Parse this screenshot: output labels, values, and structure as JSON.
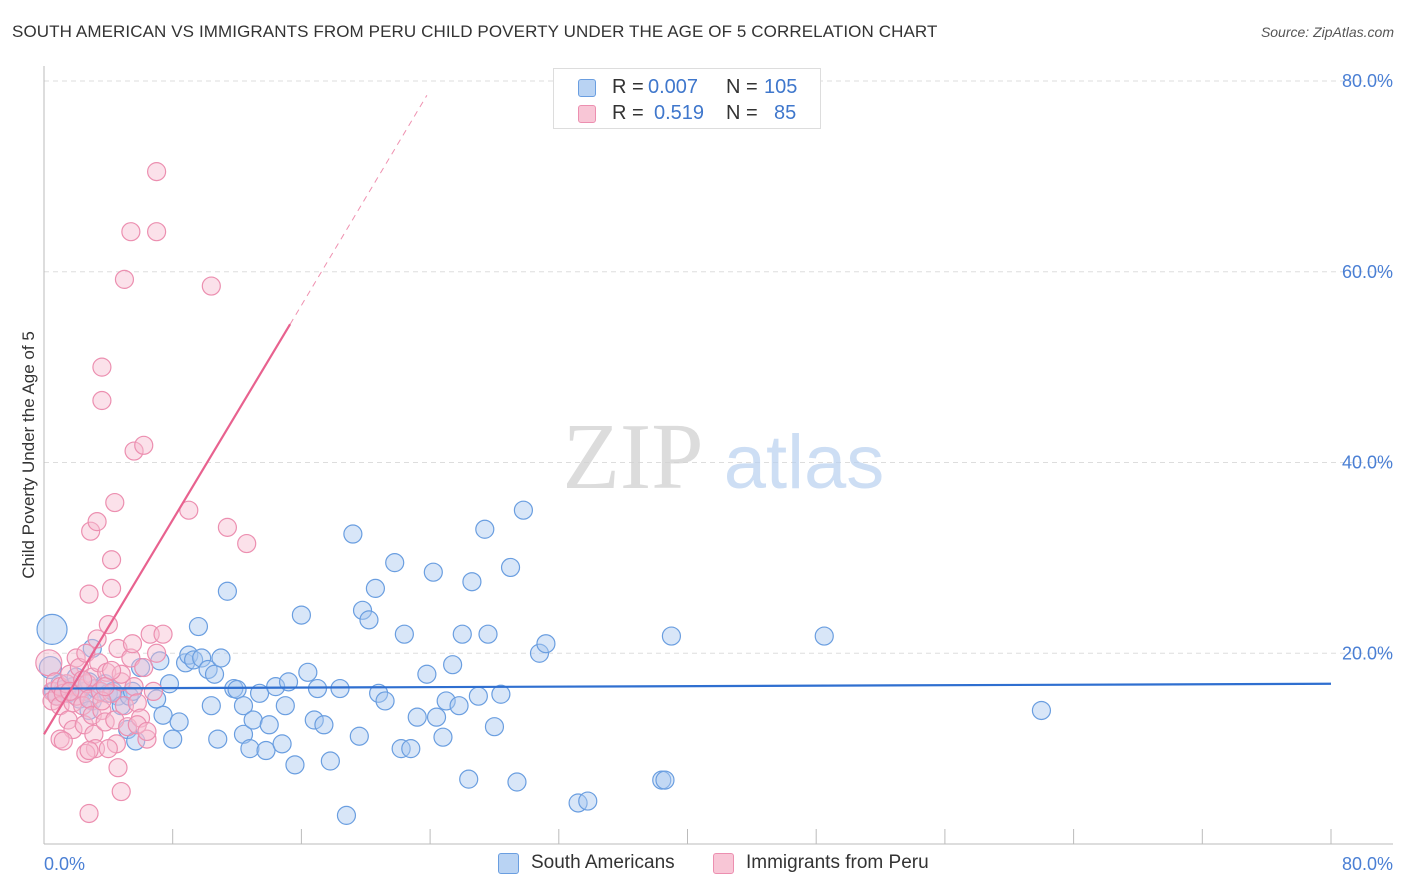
{
  "title": "SOUTH AMERICAN VS IMMIGRANTS FROM PERU CHILD POVERTY UNDER THE AGE OF 5 CORRELATION CHART",
  "source": "Source: ZipAtlas.com",
  "watermark": {
    "zip": "ZIP",
    "atlas": "atlas"
  },
  "colors": {
    "blue_fill": "#a9c8f0",
    "blue_stroke": "#6a9ee0",
    "blue_line": "#2f6fd0",
    "pink_fill": "#f6bdd0",
    "pink_stroke": "#ec8fb0",
    "pink_line": "#e8628f",
    "tick_text": "#4a7fd4",
    "grid": "#dddddd"
  },
  "legend": {
    "rows": [
      {
        "r_label": "R =",
        "r_value": "0.007",
        "n_label": "N =",
        "n_value": "105"
      },
      {
        "r_label": "R =",
        "r_value": "0.519",
        "n_label": "N =",
        "n_value": "85"
      }
    ]
  },
  "bottom_legend": {
    "series1": "South Americans",
    "series2": "Immigrants from Peru"
  },
  "chart_data": {
    "type": "scatter",
    "title": "SOUTH AMERICAN VS IMMIGRANTS FROM PERU CHILD POVERTY UNDER THE AGE OF 5 CORRELATION CHART",
    "xlabel": "",
    "ylabel": "Child Poverty Under the Age of 5",
    "xlim": [
      0,
      80
    ],
    "ylim": [
      0,
      80
    ],
    "x_tick_labels": [
      "0.0%",
      "80.0%"
    ],
    "y_tick_labels": [
      "20.0%",
      "40.0%",
      "60.0%",
      "80.0%"
    ],
    "y_ticks": [
      20,
      40,
      60,
      80
    ],
    "legend_position": "top-center",
    "series": [
      {
        "name": "South Americans",
        "R": 0.007,
        "N": 105,
        "trend": {
          "x1": 0,
          "y1": 16.3,
          "x2": 80,
          "y2": 16.8
        },
        "points": [
          [
            0.5,
            22.5
          ],
          [
            0.4,
            18.5
          ],
          [
            0.6,
            16.0
          ],
          [
            0.8,
            15.5
          ],
          [
            1.0,
            16.8
          ],
          [
            1.2,
            16.2
          ],
          [
            1.5,
            15.8
          ],
          [
            1.8,
            16.5
          ],
          [
            2.0,
            17.5
          ],
          [
            2.2,
            15.2
          ],
          [
            2.5,
            16.0
          ],
          [
            2.8,
            17.0
          ],
          [
            3.0,
            15.0
          ],
          [
            3.2,
            16.3
          ],
          [
            3.5,
            16.0
          ],
          [
            3.8,
            16.8
          ],
          [
            4.0,
            15.8
          ],
          [
            4.3,
            16.0
          ],
          [
            4.6,
            15.5
          ],
          [
            2.8,
            14.0
          ],
          [
            3.0,
            20.5
          ],
          [
            4.8,
            14.5
          ],
          [
            5.3,
            15.5
          ],
          [
            5.5,
            16.0
          ],
          [
            5.2,
            12.0
          ],
          [
            5.7,
            10.8
          ],
          [
            6.0,
            18.5
          ],
          [
            7.0,
            15.2
          ],
          [
            7.2,
            19.2
          ],
          [
            7.4,
            13.5
          ],
          [
            7.8,
            16.8
          ],
          [
            8.0,
            11.0
          ],
          [
            8.4,
            12.8
          ],
          [
            8.8,
            19.0
          ],
          [
            9.0,
            19.8
          ],
          [
            9.3,
            19.3
          ],
          [
            9.6,
            22.8
          ],
          [
            9.8,
            19.5
          ],
          [
            10.2,
            18.3
          ],
          [
            10.4,
            14.5
          ],
          [
            10.6,
            17.8
          ],
          [
            10.8,
            11.0
          ],
          [
            11.0,
            19.5
          ],
          [
            11.4,
            26.5
          ],
          [
            11.8,
            16.3
          ],
          [
            12.0,
            16.2
          ],
          [
            12.4,
            14.5
          ],
          [
            12.4,
            11.5
          ],
          [
            12.8,
            10.0
          ],
          [
            13.0,
            13.0
          ],
          [
            13.4,
            15.8
          ],
          [
            13.8,
            9.8
          ],
          [
            14.0,
            12.5
          ],
          [
            14.4,
            16.5
          ],
          [
            14.8,
            10.5
          ],
          [
            15.0,
            14.5
          ],
          [
            15.2,
            17.0
          ],
          [
            15.6,
            8.3
          ],
          [
            16.0,
            24.0
          ],
          [
            16.4,
            18.0
          ],
          [
            16.8,
            13.0
          ],
          [
            17.0,
            16.3
          ],
          [
            17.4,
            12.5
          ],
          [
            17.8,
            8.7
          ],
          [
            18.4,
            16.3
          ],
          [
            18.8,
            3.0
          ],
          [
            19.2,
            32.5
          ],
          [
            19.6,
            11.3
          ],
          [
            19.8,
            24.5
          ],
          [
            20.2,
            23.5
          ],
          [
            20.6,
            26.8
          ],
          [
            20.8,
            15.8
          ],
          [
            21.2,
            15.0
          ],
          [
            21.8,
            29.5
          ],
          [
            22.2,
            10.0
          ],
          [
            22.4,
            22.0
          ],
          [
            22.8,
            10.0
          ],
          [
            23.2,
            13.3
          ],
          [
            23.8,
            17.8
          ],
          [
            24.2,
            28.5
          ],
          [
            24.4,
            13.3
          ],
          [
            24.8,
            11.2
          ],
          [
            25.0,
            15.0
          ],
          [
            25.4,
            18.8
          ],
          [
            25.8,
            14.5
          ],
          [
            26.0,
            22.0
          ],
          [
            26.4,
            6.8
          ],
          [
            26.6,
            27.5
          ],
          [
            27.0,
            15.5
          ],
          [
            27.4,
            33.0
          ],
          [
            27.6,
            22.0
          ],
          [
            28.0,
            12.3
          ],
          [
            28.4,
            15.7
          ],
          [
            29.0,
            29.0
          ],
          [
            29.4,
            6.5
          ],
          [
            29.8,
            35.0
          ],
          [
            30.8,
            20.0
          ],
          [
            31.2,
            21.0
          ],
          [
            33.2,
            4.3
          ],
          [
            33.8,
            4.5
          ],
          [
            38.4,
            6.7
          ],
          [
            38.6,
            6.7
          ],
          [
            39.0,
            21.8
          ],
          [
            48.5,
            21.8
          ],
          [
            62.0,
            14.0
          ]
        ]
      },
      {
        "name": "Immigrants from Peru",
        "R": 0.519,
        "N": 85,
        "trend": {
          "x1": 0,
          "y1": 11.5,
          "x2": 15.3,
          "y2": 54.5,
          "dashed_to_x": 23.8,
          "dashed_to_y": 78.5
        },
        "points": [
          [
            0.3,
            19.0
          ],
          [
            0.5,
            16.0
          ],
          [
            0.5,
            15.0
          ],
          [
            0.7,
            17.0
          ],
          [
            0.8,
            15.5
          ],
          [
            1.0,
            16.5
          ],
          [
            1.0,
            14.5
          ],
          [
            1.2,
            15.8
          ],
          [
            1.4,
            16.8
          ],
          [
            1.5,
            13.0
          ],
          [
            1.6,
            17.8
          ],
          [
            1.8,
            14.8
          ],
          [
            1.8,
            12.0
          ],
          [
            2.0,
            19.5
          ],
          [
            2.0,
            15.5
          ],
          [
            2.2,
            18.5
          ],
          [
            2.3,
            16.3
          ],
          [
            2.4,
            14.5
          ],
          [
            2.5,
            12.5
          ],
          [
            2.6,
            20.0
          ],
          [
            2.7,
            16.8
          ],
          [
            2.8,
            15.2
          ],
          [
            3.0,
            17.5
          ],
          [
            3.0,
            13.5
          ],
          [
            3.1,
            11.5
          ],
          [
            3.2,
            10.0
          ],
          [
            3.3,
            21.5
          ],
          [
            3.4,
            19.0
          ],
          [
            3.5,
            16.0
          ],
          [
            3.6,
            14.0
          ],
          [
            3.8,
            12.8
          ],
          [
            3.9,
            18.0
          ],
          [
            4.0,
            23.0
          ],
          [
            4.2,
            15.8
          ],
          [
            4.4,
            13.0
          ],
          [
            4.5,
            10.5
          ],
          [
            4.6,
            20.5
          ],
          [
            4.8,
            17.0
          ],
          [
            5.0,
            14.5
          ],
          [
            5.2,
            12.3
          ],
          [
            5.4,
            19.5
          ],
          [
            5.5,
            21.0
          ],
          [
            5.6,
            16.5
          ],
          [
            5.8,
            14.8
          ],
          [
            6.0,
            13.2
          ],
          [
            6.2,
            18.5
          ],
          [
            6.4,
            11.0
          ],
          [
            6.6,
            22.0
          ],
          [
            6.8,
            16.0
          ],
          [
            7.0,
            20.0
          ],
          [
            1.0,
            11.0
          ],
          [
            1.2,
            10.8
          ],
          [
            2.6,
            9.5
          ],
          [
            2.8,
            9.8
          ],
          [
            4.0,
            10.0
          ],
          [
            4.6,
            8.0
          ],
          [
            4.8,
            5.5
          ],
          [
            2.8,
            3.2
          ],
          [
            2.8,
            26.2
          ],
          [
            4.2,
            26.8
          ],
          [
            2.9,
            32.8
          ],
          [
            3.3,
            33.8
          ],
          [
            4.2,
            29.8
          ],
          [
            4.4,
            35.8
          ],
          [
            5.6,
            41.2
          ],
          [
            6.2,
            41.8
          ],
          [
            3.6,
            46.5
          ],
          [
            3.6,
            50.0
          ],
          [
            5.0,
            59.2
          ],
          [
            5.4,
            64.2
          ],
          [
            7.0,
            64.2
          ],
          [
            7.0,
            70.5
          ],
          [
            10.4,
            58.5
          ],
          [
            9.0,
            35.0
          ],
          [
            11.4,
            33.2
          ],
          [
            12.6,
            31.5
          ],
          [
            7.4,
            22.0
          ],
          [
            4.8,
            17.8
          ],
          [
            5.8,
            12.5
          ],
          [
            6.4,
            11.8
          ],
          [
            1.6,
            16.0
          ],
          [
            2.4,
            17.2
          ],
          [
            3.6,
            15.0
          ],
          [
            3.8,
            16.5
          ],
          [
            4.2,
            18.2
          ]
        ]
      }
    ]
  }
}
